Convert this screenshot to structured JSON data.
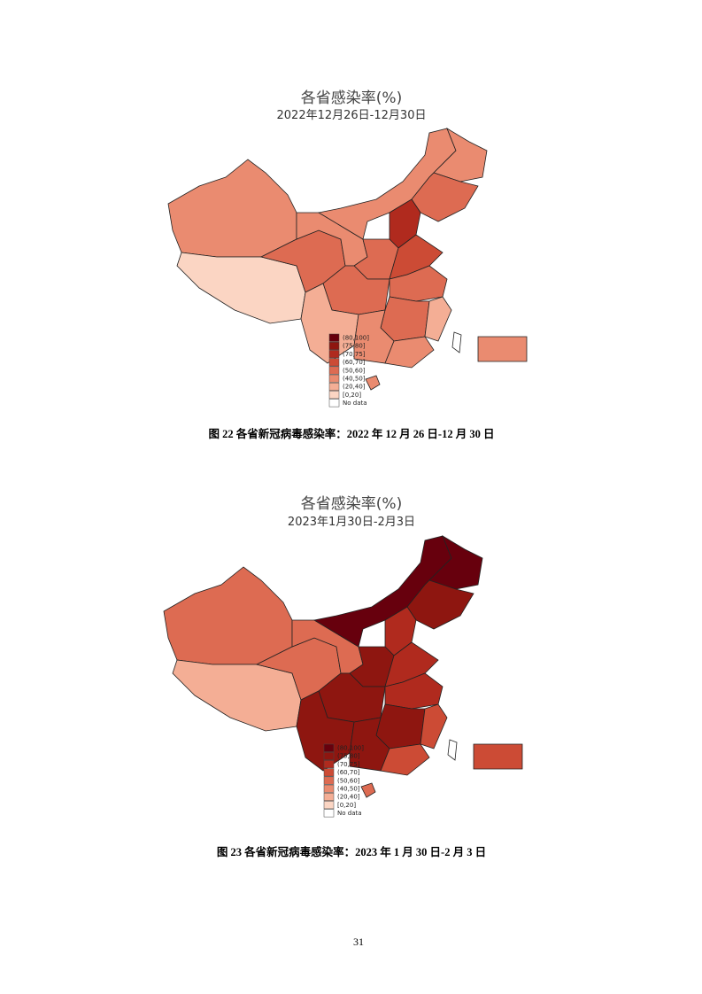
{
  "figures": [
    {
      "map_title": "各省感染率(%)",
      "map_subtitle": "2022年12月26日-12月30日",
      "legend": [
        {
          "label": "(80,100]",
          "color": "#67000d"
        },
        {
          "label": "(75,80]",
          "color": "#8e1610"
        },
        {
          "label": "(70,75]",
          "color": "#b02a1e"
        },
        {
          "label": "(60,70]",
          "color": "#cc4b35"
        },
        {
          "label": "(50,60]",
          "color": "#dd6b52"
        },
        {
          "label": "(40,50]",
          "color": "#ea8b70"
        },
        {
          "label": "(20,40]",
          "color": "#f4ae95"
        },
        {
          "label": "[0,20]",
          "color": "#fbd5c3"
        },
        {
          "label": "No data",
          "color": "#ffffff"
        }
      ],
      "caption": "图 22 各省新冠病毒感染率：2022 年 12 月 26 日-12 月 30 日"
    },
    {
      "map_title": "各省感染率(%)",
      "map_subtitle": "2023年1月30日-2月3日",
      "legend": [
        {
          "label": "(80,100]",
          "color": "#67000d"
        },
        {
          "label": "(75,80]",
          "color": "#8e1610"
        },
        {
          "label": "(70,75]",
          "color": "#b02a1e"
        },
        {
          "label": "(60,70]",
          "color": "#cc4b35"
        },
        {
          "label": "(50,60]",
          "color": "#dd6b52"
        },
        {
          "label": "(40,50]",
          "color": "#ea8b70"
        },
        {
          "label": "(20,40]",
          "color": "#f4ae95"
        },
        {
          "label": "[0,20]",
          "color": "#fbd5c3"
        },
        {
          "label": "No data",
          "color": "#ffffff"
        }
      ],
      "caption": "图 23 各省新冠病毒感染率：2023 年 1 月 30 日-2 月 3 日"
    }
  ],
  "page_number": "31"
}
